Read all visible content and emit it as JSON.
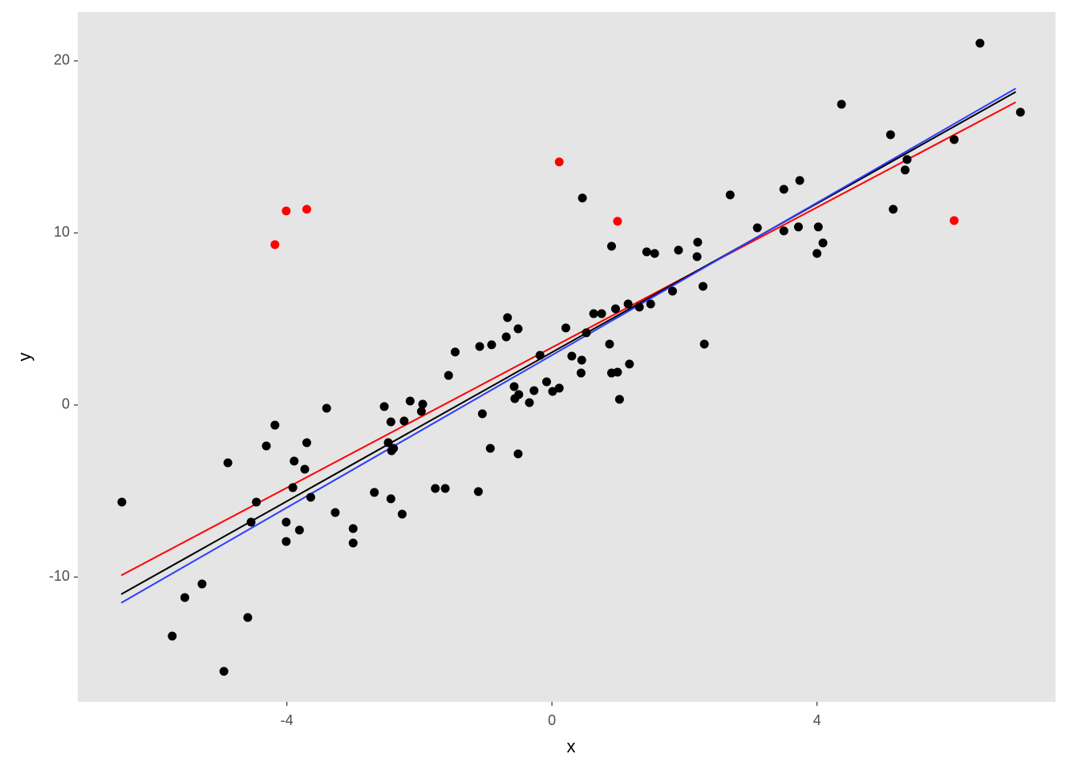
{
  "chart_data": {
    "type": "scatter",
    "x_label": "x",
    "y_label": "y",
    "xlim": [
      -7.155,
      7.6
    ],
    "ylim": [
      -17.25,
      22.84
    ],
    "xticks": [
      -4,
      0,
      4
    ],
    "yticks": [
      -10,
      0,
      10,
      20
    ],
    "grid": false,
    "background": "#e5e5e5",
    "series": [
      {
        "color": "#000000",
        "x": [
          -6.49,
          -5.73,
          -5.54,
          -5.28,
          -4.95,
          -4.89,
          -4.59,
          -4.54,
          -4.46,
          -4.31,
          -4.18,
          -4.01,
          -4.01,
          -3.91,
          -3.89,
          -3.81,
          -3.73,
          -3.7,
          -3.64,
          -3.4,
          -3.27,
          -3.0,
          -3.0,
          -2.68,
          -2.53,
          -2.47,
          -2.43,
          -2.43,
          -2.42,
          -2.39,
          -2.26,
          -2.23,
          -2.14,
          -1.97,
          -1.95,
          -1.76,
          -1.61,
          -1.56,
          -1.46,
          -1.11,
          -1.09,
          -1.05,
          -0.93,
          -0.91,
          -0.69,
          -0.67,
          -0.57,
          -0.56,
          -0.51,
          -0.51,
          -0.5,
          -0.34,
          -0.27,
          -0.18,
          -0.08,
          0.01,
          0.11,
          0.21,
          0.3,
          0.44,
          0.45,
          0.46,
          0.52,
          0.63,
          0.75,
          0.87,
          0.9,
          0.9,
          0.96,
          0.99,
          1.02,
          1.15,
          1.17,
          1.32,
          1.43,
          1.49,
          1.55,
          1.82,
          1.91,
          2.19,
          2.2,
          2.28,
          2.3,
          2.69,
          3.1,
          3.5,
          3.5,
          3.72,
          3.74,
          4.0,
          4.02,
          4.09,
          4.37,
          5.11,
          5.15,
          5.33,
          5.36,
          6.07,
          6.46,
          7.07
        ],
        "values": [
          -5.64,
          -13.43,
          -11.19,
          -10.4,
          -15.48,
          -3.36,
          -12.35,
          -6.81,
          -5.64,
          -2.38,
          -1.17,
          -6.81,
          -7.93,
          -4.8,
          -3.26,
          -7.27,
          -3.73,
          -2.19,
          -5.36,
          -0.19,
          -6.25,
          -7.18,
          -8.02,
          -5.08,
          -0.09,
          -2.19,
          -0.98,
          -5.45,
          -2.66,
          -2.52,
          -6.34,
          -0.93,
          0.23,
          -0.37,
          0.05,
          -4.85,
          -4.85,
          1.72,
          3.08,
          -5.03,
          3.4,
          -0.51,
          -2.52,
          3.5,
          3.96,
          5.08,
          1.07,
          0.37,
          -2.84,
          4.43,
          0.61,
          0.14,
          0.84,
          2.89,
          1.35,
          0.79,
          0.98,
          4.48,
          2.84,
          1.86,
          2.61,
          12.03,
          4.2,
          5.31,
          5.31,
          3.54,
          9.23,
          1.86,
          5.59,
          1.91,
          0.33,
          5.87,
          2.38,
          5.69,
          8.9,
          5.87,
          8.81,
          6.62,
          9.0,
          8.62,
          9.46,
          6.9,
          3.54,
          12.21,
          10.3,
          12.54,
          10.12,
          10.35,
          13.05,
          8.81,
          10.35,
          9.42,
          17.48,
          15.71,
          11.38,
          13.66,
          14.27,
          15.43,
          21.03,
          17.02
        ]
      },
      {
        "color": "#ff0000",
        "x": [
          -4.18,
          -4.01,
          -3.7,
          0.11,
          0.99,
          6.07
        ],
        "values": [
          9.32,
          11.28,
          11.38,
          14.13,
          10.68,
          10.72
        ]
      }
    ],
    "lines": [
      {
        "color": "#ff0000",
        "x": [
          -6.5,
          7.0
        ],
        "values": [
          -9.9,
          17.6
        ]
      },
      {
        "color": "#000000",
        "x": [
          -6.5,
          7.0
        ],
        "values": [
          -11.0,
          18.2
        ]
      },
      {
        "color": "#2d3cff",
        "x": [
          -6.5,
          7.0
        ],
        "values": [
          -11.5,
          18.4
        ]
      }
    ]
  }
}
